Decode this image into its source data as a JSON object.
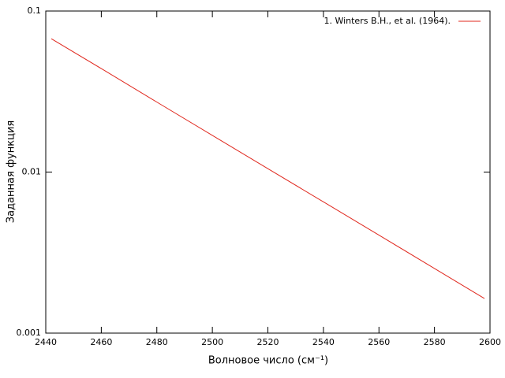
{
  "chart_data": {
    "type": "line",
    "x_label": "Волновое число (см⁻¹)",
    "y_label": "Заданная функция",
    "x": [
      2442,
      2460,
      2480,
      2500,
      2520,
      2540,
      2560,
      2580,
      2598
    ],
    "series": [
      {
        "name": "1. Winters B.H., et al. (1964).",
        "color": "#e0281e",
        "values": [
          0.0673,
          0.0439,
          0.0272,
          0.0169,
          0.0105,
          0.00653,
          0.00406,
          0.00252,
          0.00164
        ]
      }
    ],
    "xlim": [
      2440,
      2600
    ],
    "xticks": [
      2440,
      2460,
      2480,
      2500,
      2520,
      2540,
      2560,
      2580,
      2600
    ],
    "ylim": [
      0.001,
      0.1
    ],
    "yticks": [
      0.001,
      0.01,
      0.1
    ],
    "log_y": true,
    "legend": "top-right"
  }
}
